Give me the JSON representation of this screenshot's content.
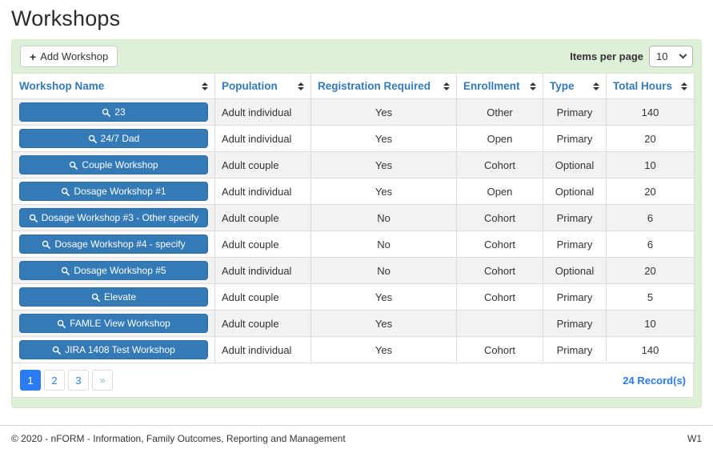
{
  "page": {
    "title": "Workshops"
  },
  "toolbar": {
    "add_button_label": "Add Workshop",
    "add_icon": "+",
    "items_per_page_label": "Items per page",
    "items_per_page_value": "10"
  },
  "colors": {
    "panel_bg": "#dff0d8",
    "accent_blue": "#337ab7",
    "pagination_blue": "#2b7cf2",
    "stripe_gray": "#f2f2f2",
    "border_gray": "#dddddd"
  },
  "table": {
    "columns": [
      {
        "label": "Workshop Name",
        "key": "name"
      },
      {
        "label": "Population",
        "key": "population"
      },
      {
        "label": "Registration Required",
        "key": "registration_required"
      },
      {
        "label": "Enrollment",
        "key": "enrollment"
      },
      {
        "label": "Type",
        "key": "type"
      },
      {
        "label": "Total Hours",
        "key": "total_hours"
      }
    ],
    "rows": [
      {
        "name": "23",
        "population": "Adult individual",
        "registration_required": "Yes",
        "enrollment": "Other",
        "type": "Primary",
        "total_hours": "140"
      },
      {
        "name": "24/7 Dad",
        "population": "Adult individual",
        "registration_required": "Yes",
        "enrollment": "Open",
        "type": "Primary",
        "total_hours": "20"
      },
      {
        "name": "Couple Workshop",
        "population": "Adult couple",
        "registration_required": "Yes",
        "enrollment": "Cohort",
        "type": "Optional",
        "total_hours": "10"
      },
      {
        "name": "Dosage Workshop #1",
        "population": "Adult individual",
        "registration_required": "Yes",
        "enrollment": "Open",
        "type": "Optional",
        "total_hours": "20"
      },
      {
        "name": "Dosage Workshop #3 - Other specify",
        "population": "Adult couple",
        "registration_required": "No",
        "enrollment": "Cohort",
        "type": "Primary",
        "total_hours": "6"
      },
      {
        "name": "Dosage Workshop #4 - specify",
        "population": "Adult couple",
        "registration_required": "No",
        "enrollment": "Cohort",
        "type": "Primary",
        "total_hours": "6"
      },
      {
        "name": "Dosage Workshop #5",
        "population": "Adult individual",
        "registration_required": "No",
        "enrollment": "Cohort",
        "type": "Optional",
        "total_hours": "20"
      },
      {
        "name": "Elevate",
        "population": "Adult couple",
        "registration_required": "Yes",
        "enrollment": "Cohort",
        "type": "Primary",
        "total_hours": "5"
      },
      {
        "name": "FAMLE View Workshop",
        "population": "Adult couple",
        "registration_required": "Yes",
        "enrollment": "",
        "type": "Primary",
        "total_hours": "10"
      },
      {
        "name": "JIRA 1408 Test Workshop",
        "population": "Adult individual",
        "registration_required": "Yes",
        "enrollment": "Cohort",
        "type": "Primary",
        "total_hours": "140"
      }
    ]
  },
  "pagination": {
    "pages": [
      "1",
      "2",
      "3"
    ],
    "active_page": "1",
    "next_label": "»",
    "records_text": "24 Record(s)"
  },
  "footer": {
    "copyright": "© 2020 - nFORM - Information, Family Outcomes, Reporting and Management",
    "version": "W1"
  }
}
